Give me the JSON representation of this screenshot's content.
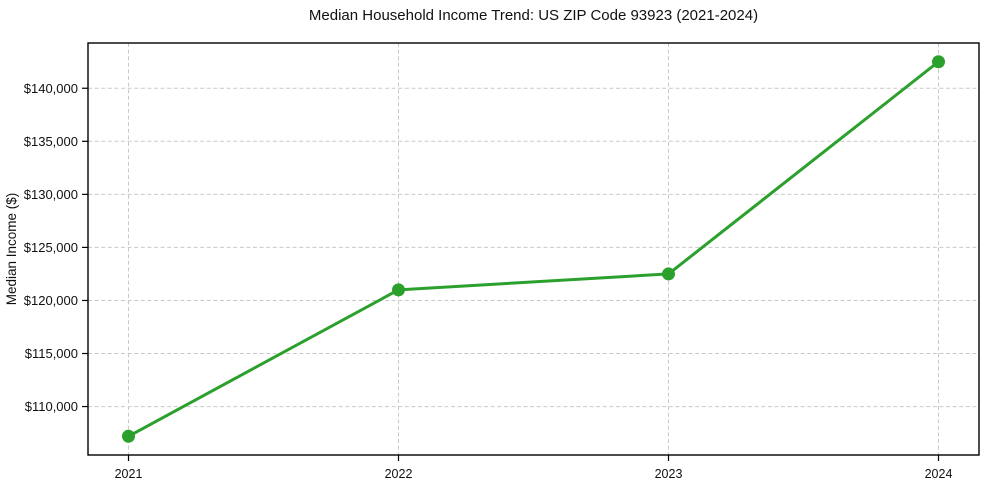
{
  "chart_data": {
    "type": "line",
    "title": "Median Household Income Trend: US ZIP Code 93923 (2021-2024)",
    "xlabel": "",
    "ylabel": "Median Income ($)",
    "x": [
      2021,
      2022,
      2023,
      2024
    ],
    "values": [
      107200,
      121000,
      122500,
      142500
    ],
    "x_ticks": {
      "values": [
        2021,
        2022,
        2023,
        2024
      ],
      "labels": [
        "2021",
        "2022",
        "2023",
        "2024"
      ]
    },
    "y_ticks": {
      "values": [
        110000,
        115000,
        120000,
        125000,
        130000,
        135000,
        140000
      ],
      "labels": [
        "$110,000",
        "$115,000",
        "$120,000",
        "$125,000",
        "$130,000",
        "$135,000",
        "$140,000"
      ]
    },
    "xlim": [
      2020.85,
      2024.15
    ],
    "ylim": [
      105435,
      144265
    ],
    "grid": true,
    "grid_style": "dashed",
    "legend": "none",
    "marker": "circle",
    "colors": {
      "line": "#2ca02c",
      "grid": "#c9c9c9",
      "axis": "#000000",
      "text": "#111111",
      "background": "#ffffff"
    }
  }
}
